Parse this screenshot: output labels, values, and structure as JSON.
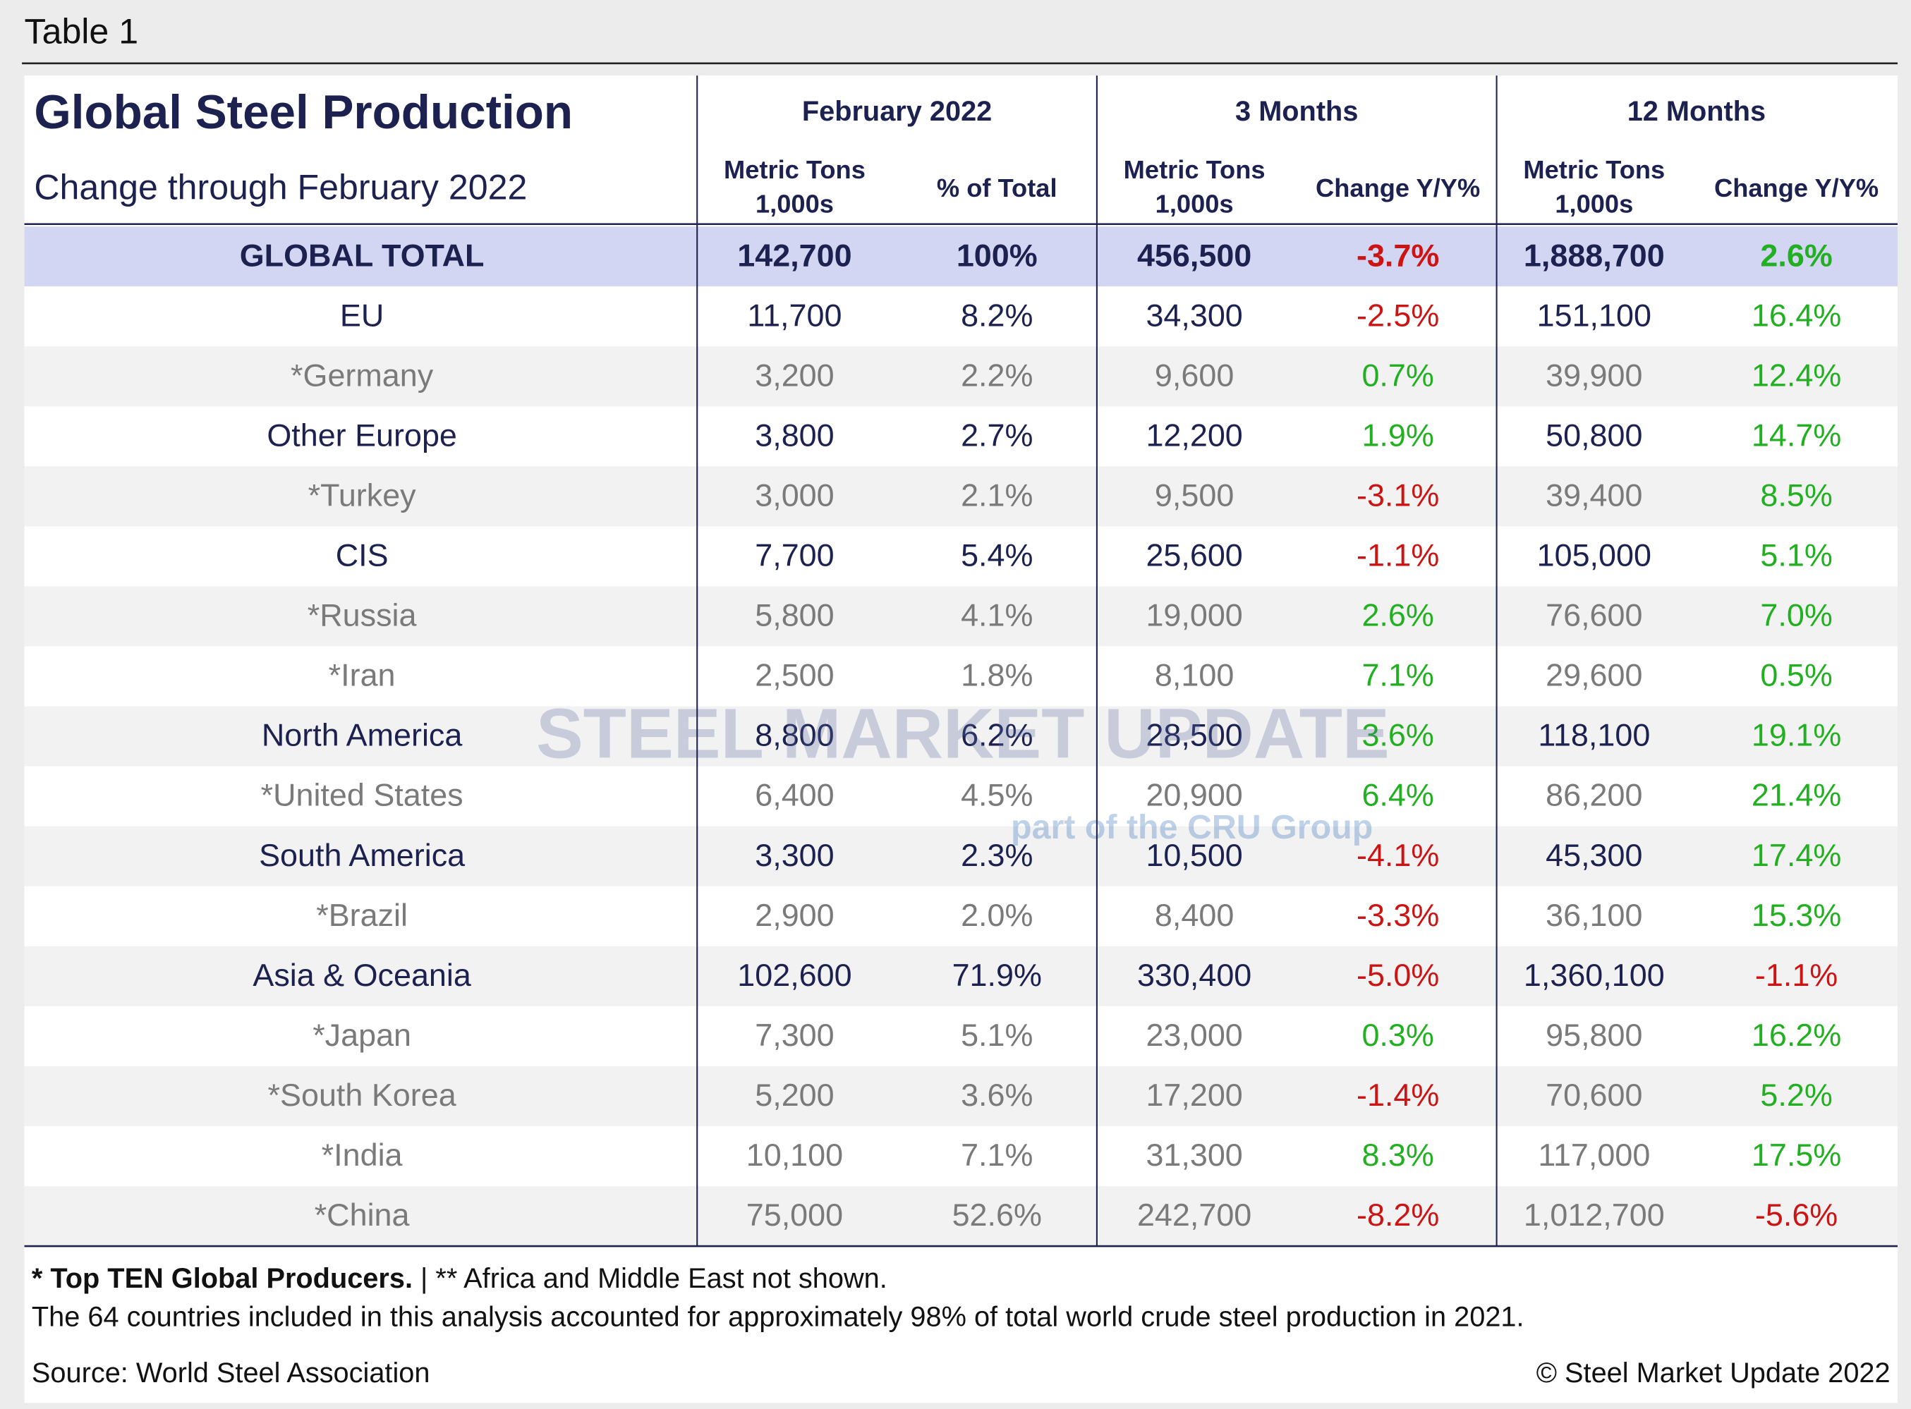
{
  "caption": "Table 1",
  "header": {
    "title": "Global Steel Production",
    "subtitle": "Change through February 2022",
    "groups": [
      "February 2022",
      "3 Months",
      "12 Months"
    ],
    "columns": [
      [
        "Metric Tons",
        "1,000s"
      ],
      [
        "% of Total"
      ],
      [
        "Metric Tons",
        "1,000s"
      ],
      [
        "Change Y/Y%"
      ],
      [
        "Metric Tons",
        "1,000s"
      ],
      [
        "Change Y/Y%"
      ]
    ]
  },
  "rows": [
    {
      "name": "GLOBAL TOTAL",
      "values": [
        "142,700",
        "100%",
        "456,500",
        "-3.7%",
        "1,888,700",
        "2.6%"
      ]
    },
    {
      "name": "EU",
      "values": [
        "11,700",
        "8.2%",
        "34,300",
        "-2.5%",
        "151,100",
        "16.4%"
      ]
    },
    {
      "name": "*Germany",
      "values": [
        "3,200",
        "2.2%",
        "9,600",
        "0.7%",
        "39,900",
        "12.4%"
      ]
    },
    {
      "name": "Other Europe",
      "values": [
        "3,800",
        "2.7%",
        "12,200",
        "1.9%",
        "50,800",
        "14.7%"
      ]
    },
    {
      "name": "*Turkey",
      "values": [
        "3,000",
        "2.1%",
        "9,500",
        "-3.1%",
        "39,400",
        "8.5%"
      ]
    },
    {
      "name": "CIS",
      "values": [
        "7,700",
        "5.4%",
        "25,600",
        "-1.1%",
        "105,000",
        "5.1%"
      ]
    },
    {
      "name": "*Russia",
      "values": [
        "5,800",
        "4.1%",
        "19,000",
        "2.6%",
        "76,600",
        "7.0%"
      ]
    },
    {
      "name": "*Iran",
      "values": [
        "2,500",
        "1.8%",
        "8,100",
        "7.1%",
        "29,600",
        "0.5%"
      ]
    },
    {
      "name": "North America",
      "values": [
        "8,800",
        "6.2%",
        "28,500",
        "3.6%",
        "118,100",
        "19.1%"
      ]
    },
    {
      "name": "*United States",
      "values": [
        "6,400",
        "4.5%",
        "20,900",
        "6.4%",
        "86,200",
        "21.4%"
      ]
    },
    {
      "name": "South America",
      "values": [
        "3,300",
        "2.3%",
        "10,500",
        "-4.1%",
        "45,300",
        "17.4%"
      ]
    },
    {
      "name": "*Brazil",
      "values": [
        "2,900",
        "2.0%",
        "8,400",
        "-3.3%",
        "36,100",
        "15.3%"
      ]
    },
    {
      "name": "Asia & Oceania",
      "values": [
        "102,600",
        "71.9%",
        "330,400",
        "-5.0%",
        "1,360,100",
        "-1.1%"
      ]
    },
    {
      "name": "*Japan",
      "values": [
        "7,300",
        "5.1%",
        "23,000",
        "0.3%",
        "95,800",
        "16.2%"
      ]
    },
    {
      "name": "*South Korea",
      "values": [
        "5,200",
        "3.6%",
        "17,200",
        "-1.4%",
        "70,600",
        "5.2%"
      ]
    },
    {
      "name": "*India",
      "values": [
        "10,100",
        "7.1%",
        "31,300",
        "8.3%",
        "117,000",
        "17.5%"
      ]
    },
    {
      "name": "*China",
      "values": [
        "75,000",
        "52.6%",
        "242,700",
        "-8.2%",
        "1,012,700",
        "-5.6%"
      ]
    }
  ],
  "footer": {
    "note_bold": "* Top TEN Global Producers.",
    "note_rest": " | ** Africa and Middle East not shown.",
    "note2": "The 64 countries included in this analysis accounted for approximately 98% of total world crude steel production in 2021.",
    "source": "Source: World Steel Association",
    "copyright": "© Steel Market Update 2022"
  },
  "watermark": {
    "brand": "STEEL MARKET UPDATE",
    "tagline": "part of the CRU Group"
  }
}
